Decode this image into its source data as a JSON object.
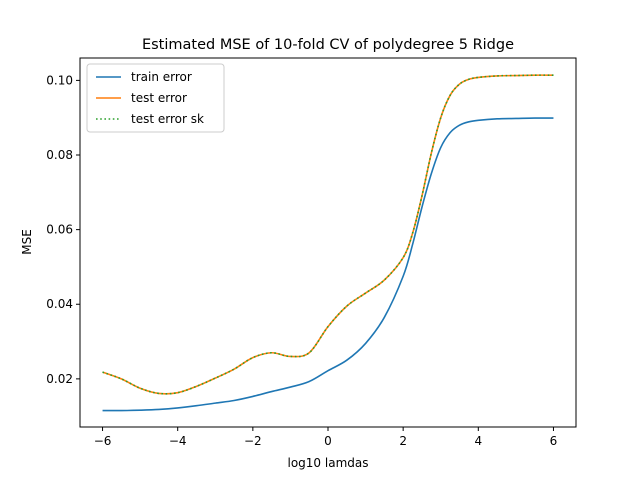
{
  "chart_data": {
    "type": "line",
    "title": "Estimated MSE of 10-fold CV of polydegree 5 Ridge",
    "xlabel": "log10 lamdas",
    "ylabel": "MSE",
    "xlim": [
      -6.6,
      6.6
    ],
    "ylim": [
      0.0071,
      0.106
    ],
    "xticks": [
      -6,
      -4,
      -2,
      0,
      2,
      4,
      6
    ],
    "xtick_labels": [
      "−6",
      "−4",
      "−2",
      "0",
      "2",
      "4",
      "6"
    ],
    "yticks": [
      0.02,
      0.04,
      0.06,
      0.08,
      0.1
    ],
    "ytick_labels": [
      "0.02",
      "0.04",
      "0.06",
      "0.08",
      "0.10"
    ],
    "grid": false,
    "legend_position": "upper-left",
    "x": [
      -6.0,
      -5.5,
      -5.0,
      -4.5,
      -4.0,
      -3.5,
      -3.0,
      -2.5,
      -2.0,
      -1.5,
      -1.0,
      -0.5,
      0.0,
      0.5,
      1.0,
      1.5,
      2.0,
      2.25,
      2.5,
      2.75,
      3.0,
      3.25,
      3.5,
      3.75,
      4.0,
      4.5,
      5.0,
      5.5,
      6.0
    ],
    "series": [
      {
        "name": "train error",
        "color": "#1f77b4",
        "style": "solid",
        "values": [
          0.0115,
          0.0115,
          0.0116,
          0.0118,
          0.0122,
          0.0128,
          0.0135,
          0.0142,
          0.0153,
          0.0166,
          0.0178,
          0.0193,
          0.0222,
          0.025,
          0.0295,
          0.0365,
          0.0475,
          0.056,
          0.066,
          0.075,
          0.082,
          0.086,
          0.088,
          0.0889,
          0.0893,
          0.0897,
          0.0898,
          0.0899,
          0.0899
        ]
      },
      {
        "name": "test error",
        "color": "#ff7f0e",
        "style": "solid",
        "values": [
          0.0218,
          0.02,
          0.0175,
          0.0161,
          0.0163,
          0.018,
          0.0202,
          0.0226,
          0.0257,
          0.027,
          0.026,
          0.027,
          0.034,
          0.0395,
          0.043,
          0.0465,
          0.0525,
          0.059,
          0.069,
          0.0805,
          0.09,
          0.096,
          0.099,
          0.1003,
          0.1008,
          0.1012,
          0.1013,
          0.1014,
          0.1014
        ]
      },
      {
        "name": "test error sk",
        "color": "#2ca02c",
        "style": "dotted",
        "values": [
          0.0218,
          0.02,
          0.0175,
          0.0161,
          0.0163,
          0.018,
          0.0202,
          0.0226,
          0.0257,
          0.027,
          0.026,
          0.027,
          0.034,
          0.0395,
          0.043,
          0.0465,
          0.0525,
          0.059,
          0.069,
          0.0805,
          0.09,
          0.096,
          0.099,
          0.1003,
          0.1008,
          0.1012,
          0.1013,
          0.1014,
          0.1014
        ]
      }
    ]
  }
}
